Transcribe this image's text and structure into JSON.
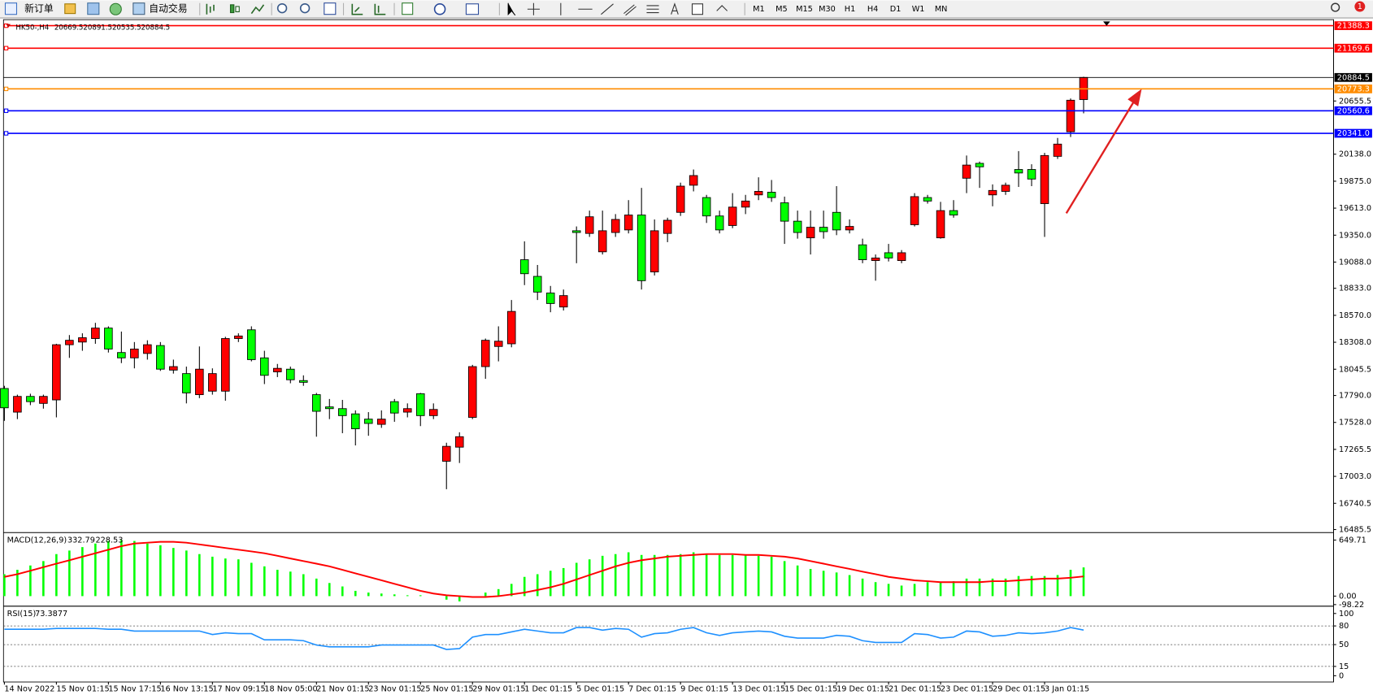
{
  "toolbar": {
    "buttons": [
      "新订单",
      "自动交易"
    ],
    "timeframes": [
      "M1",
      "M5",
      "M15",
      "M30",
      "H1",
      "H4",
      "D1",
      "W1",
      "MN"
    ],
    "badge": "1"
  },
  "chart_data": [
    {
      "type": "candlestick",
      "title": "HK50-,H4",
      "categories": [
        "14 Nov 2022",
        null,
        null,
        null,
        "15 Nov 01:15",
        null,
        null,
        null,
        "15 Nov 17:15",
        null,
        null,
        null,
        "16 Nov 13:15",
        null,
        null,
        null,
        "17 Nov 09:15",
        null,
        null,
        null,
        "18 Nov 05:00",
        null,
        null,
        null,
        "21 Nov 01:15",
        null,
        null,
        null,
        "23 Nov 01:15",
        null,
        null,
        null,
        "25 Nov 01:15",
        null,
        null,
        null,
        "29 Nov 01:15",
        null,
        null,
        null,
        "1 Dec 01:15",
        null,
        null,
        null,
        "5 Dec 01:15",
        null,
        null,
        null,
        "7 Dec 01:15",
        null,
        null,
        null,
        "9 Dec 01:15",
        null,
        null,
        null,
        "13 Dec 01:15",
        null,
        null,
        null,
        "15 Dec 01:15",
        null,
        null,
        null,
        "19 Dec 01:15",
        null,
        null,
        null,
        "21 Dec 01:15",
        null,
        null,
        null,
        "23 Dec 01:15",
        null,
        null,
        null,
        "29 Dec 01:15",
        null,
        null,
        null,
        "3 Jan 01:15",
        null,
        null,
        null
      ],
      "open": [
        17858,
        17628,
        17781,
        17713,
        17747,
        18284,
        18310,
        18344,
        18446,
        18208,
        18156,
        18199,
        18276,
        18037,
        18003,
        17798,
        17832,
        17832,
        18344,
        18429,
        18156,
        18020,
        18046,
        17935,
        17798,
        17679,
        17662,
        17611,
        17560,
        17509,
        17730,
        17628,
        17807,
        17594,
        17150,
        17287,
        17577,
        18071,
        18267,
        18293,
        19111,
        18949,
        18787,
        18651,
        19393,
        19367,
        19188,
        19376,
        19401,
        19546,
        18992,
        19367,
        19572,
        19836,
        19716,
        19537,
        19444,
        19623,
        19742,
        19768,
        19665,
        19486,
        19324,
        19427,
        19572,
        19401,
        19256,
        19103,
        19179,
        19103,
        19452,
        19716,
        19324,
        19589,
        19904,
        20049,
        19742,
        19776,
        19989,
        19989,
        19657,
        20117,
        20356,
        20669.5
      ],
      "high": [
        17884,
        17798,
        17807,
        17798,
        18293,
        18378,
        18395,
        18497,
        18463,
        18412,
        18310,
        18327,
        18310,
        18139,
        18071,
        18267,
        18054,
        18361,
        18395,
        18463,
        18225,
        18097,
        18071,
        17986,
        17815,
        17756,
        17747,
        17645,
        17628,
        17645,
        17756,
        17713,
        17815,
        17713,
        17330,
        17432,
        18088,
        18344,
        18463,
        18719,
        19290,
        19060,
        18856,
        18821,
        19435,
        19589,
        19589,
        19555,
        19691,
        19810,
        19503,
        19520,
        19861,
        19989,
        19742,
        19589,
        19759,
        19742,
        19913,
        19887,
        19725,
        19589,
        19589,
        19589,
        19827,
        19503,
        19316,
        19162,
        19265,
        19205,
        19759,
        19742,
        19674,
        19691,
        20125,
        20066,
        19844,
        19861,
        20168,
        20040,
        20151,
        20296,
        20680,
        20891.5
      ],
      "low": [
        17543,
        17560,
        17696,
        17662,
        17577,
        18156,
        18225,
        18293,
        18208,
        18105,
        18054,
        18139,
        18029,
        18003,
        17713,
        17764,
        17798,
        17739,
        18310,
        18122,
        17901,
        17969,
        17909,
        17884,
        17389,
        17560,
        17423,
        17304,
        17398,
        17475,
        17534,
        17577,
        17492,
        17560,
        16878,
        17133,
        17560,
        17952,
        18122,
        18259,
        18864,
        18719,
        18600,
        18617,
        19077,
        19333,
        19162,
        19333,
        19367,
        18821,
        18958,
        19282,
        19537,
        19776,
        19469,
        19367,
        19418,
        19555,
        19691,
        19674,
        19265,
        19316,
        19162,
        19316,
        19350,
        19367,
        19077,
        18907,
        19094,
        19077,
        19435,
        19657,
        19316,
        19520,
        19759,
        19810,
        19631,
        19742,
        19819,
        19827,
        19333,
        20092,
        20305,
        20535.5
      ],
      "close": [
        17670,
        17781,
        17730,
        17781,
        18284,
        18327,
        18352,
        18446,
        18242,
        18156,
        18242,
        18284,
        18046,
        18071,
        17815,
        18046,
        18003,
        18344,
        18369,
        18139,
        17986,
        18054,
        17943,
        17918,
        17636,
        17662,
        17594,
        17466,
        17518,
        17560,
        17619,
        17662,
        17594,
        17654,
        17295,
        17389,
        18071,
        18327,
        18318,
        18608,
        18975,
        18796,
        18685,
        18762,
        19376,
        19529,
        19393,
        19503,
        19546,
        18907,
        19393,
        19495,
        19827,
        19930,
        19537,
        19401,
        19623,
        19682,
        19776,
        19716,
        19486,
        19376,
        19427,
        19384,
        19401,
        19435,
        19111,
        19128,
        19128,
        19179,
        19725,
        19682,
        19589,
        19546,
        20032,
        20015,
        19785,
        19836,
        19955,
        19896,
        20125,
        20236,
        20663,
        20884.5
      ],
      "up_color": "#ff0000",
      "down_color": "#00ff00",
      "last_color": "#000000",
      "ylim": [
        16460,
        21447
      ],
      "yticks": [
        16485.5,
        16740.5,
        {
          "value": 17003,
          "label": "17003.0"
        },
        17265.5,
        {
          "value": 17528,
          "label": "17528.0"
        },
        {
          "value": 17790,
          "label": "17790.0"
        },
        18045.5,
        {
          "value": 18308,
          "label": "18308.0"
        },
        {
          "value": 18570,
          "label": "18570.0"
        },
        {
          "value": 18833,
          "label": "18833.0"
        },
        {
          "value": 19088,
          "label": "19088.0"
        },
        {
          "value": 19350,
          "label": "19350.0"
        },
        {
          "value": 19613,
          "label": "19613.0"
        },
        {
          "value": 19875,
          "label": "19875.0"
        },
        {
          "value": 20138,
          "label": "20138.0"
        },
        20655.5
      ],
      "levels": [
        {
          "value": 21388.3,
          "color": "#ff0000"
        },
        {
          "value": 21169.6,
          "color": "#ff0000"
        },
        {
          "value": 20773.3,
          "color": "#ff8c00"
        },
        {
          "value": 20560.6,
          "color": "#0000ff"
        },
        {
          "value": 20341,
          "label": "20341.0",
          "color": "#0000ff"
        }
      ]
    },
    {
      "type": "macd",
      "title": "MACD(12,26,9)",
      "series": [
        {
          "style": "bar",
          "color": "#00ff00",
          "values": [
            254,
            305,
            355,
            406,
            487,
            528,
            568,
            609,
            639,
            650,
            639,
            609,
            589,
            558,
            528,
            487,
            457,
            436,
            426,
            386,
            345,
            305,
            284,
            254,
            203,
            152,
            112,
            61,
            41,
            30,
            20,
            10,
            10,
            0,
            -41,
            -61,
            0,
            41,
            81,
            142,
            223,
            254,
            294,
            325,
            386,
            426,
            467,
            487,
            508,
            477,
            477,
            477,
            487,
            508,
            487,
            477,
            477,
            477,
            467,
            457,
            406,
            355,
            315,
            294,
            274,
            244,
            203,
            162,
            142,
            122,
            142,
            162,
            162,
            173,
            203,
            203,
            203,
            203,
            233,
            233,
            233,
            244,
            305,
            332.79
          ]
        },
        {
          "style": "line",
          "color": "#ff0000",
          "values": [
            223,
            254,
            294,
            335,
            376,
            416,
            457,
            497,
            538,
            579,
            609,
            619,
            629,
            629,
            619,
            599,
            579,
            558,
            538,
            518,
            497,
            467,
            436,
            406,
            376,
            345,
            305,
            264,
            223,
            183,
            142,
            102,
            61,
            30,
            10,
            0,
            -10,
            -10,
            0,
            20,
            41,
            71,
            102,
            142,
            193,
            244,
            294,
            345,
            386,
            416,
            436,
            457,
            467,
            477,
            487,
            487,
            487,
            477,
            477,
            467,
            457,
            436,
            406,
            376,
            345,
            315,
            284,
            254,
            223,
            203,
            183,
            173,
            162,
            162,
            162,
            162,
            173,
            173,
            183,
            193,
            203,
            203,
            213,
            228.53
          ]
        }
      ],
      "ylim": [
        -101.5,
        731
      ],
      "yticks": [
        649.71,
        {
          "value": 0,
          "label": "0.00"
        },
        -98.22
      ]
    },
    {
      "type": "rsi",
      "title": "RSI(15)",
      "series": [
        {
          "style": "line",
          "color": "#1e90ff",
          "values": [
            74.6,
            74.6,
            74.6,
            74.6,
            76,
            76,
            76,
            76,
            74.6,
            74.6,
            71.8,
            71.8,
            71.8,
            71.8,
            71.8,
            71.8,
            66.2,
            69,
            67.6,
            67.6,
            57.7,
            57.7,
            57.7,
            56.3,
            49.3,
            46.5,
            46.5,
            46.5,
            46.5,
            49.3,
            49.3,
            49.3,
            49.3,
            49.3,
            42.2,
            43.6,
            62,
            66.2,
            66.2,
            70.4,
            74.6,
            71.8,
            69,
            69,
            77.4,
            77.4,
            73.2,
            76,
            74.6,
            62,
            67.6,
            69,
            74.6,
            77.4,
            69,
            64.8,
            69,
            70.4,
            71.8,
            70.4,
            63.4,
            60.5,
            60.5,
            60.5,
            64.8,
            63.4,
            56.3,
            53.5,
            53.5,
            53.5,
            67.6,
            66.2,
            60.5,
            62,
            71.8,
            70.4,
            63.4,
            64.8,
            69,
            67.6,
            69,
            71.8,
            77.4,
            73.3877
          ]
        }
      ],
      "ylim": [
        -10,
        111
      ],
      "yticks": [
        100,
        80,
        50,
        15,
        0
      ],
      "levels": [
        80,
        50,
        15
      ]
    }
  ]
}
